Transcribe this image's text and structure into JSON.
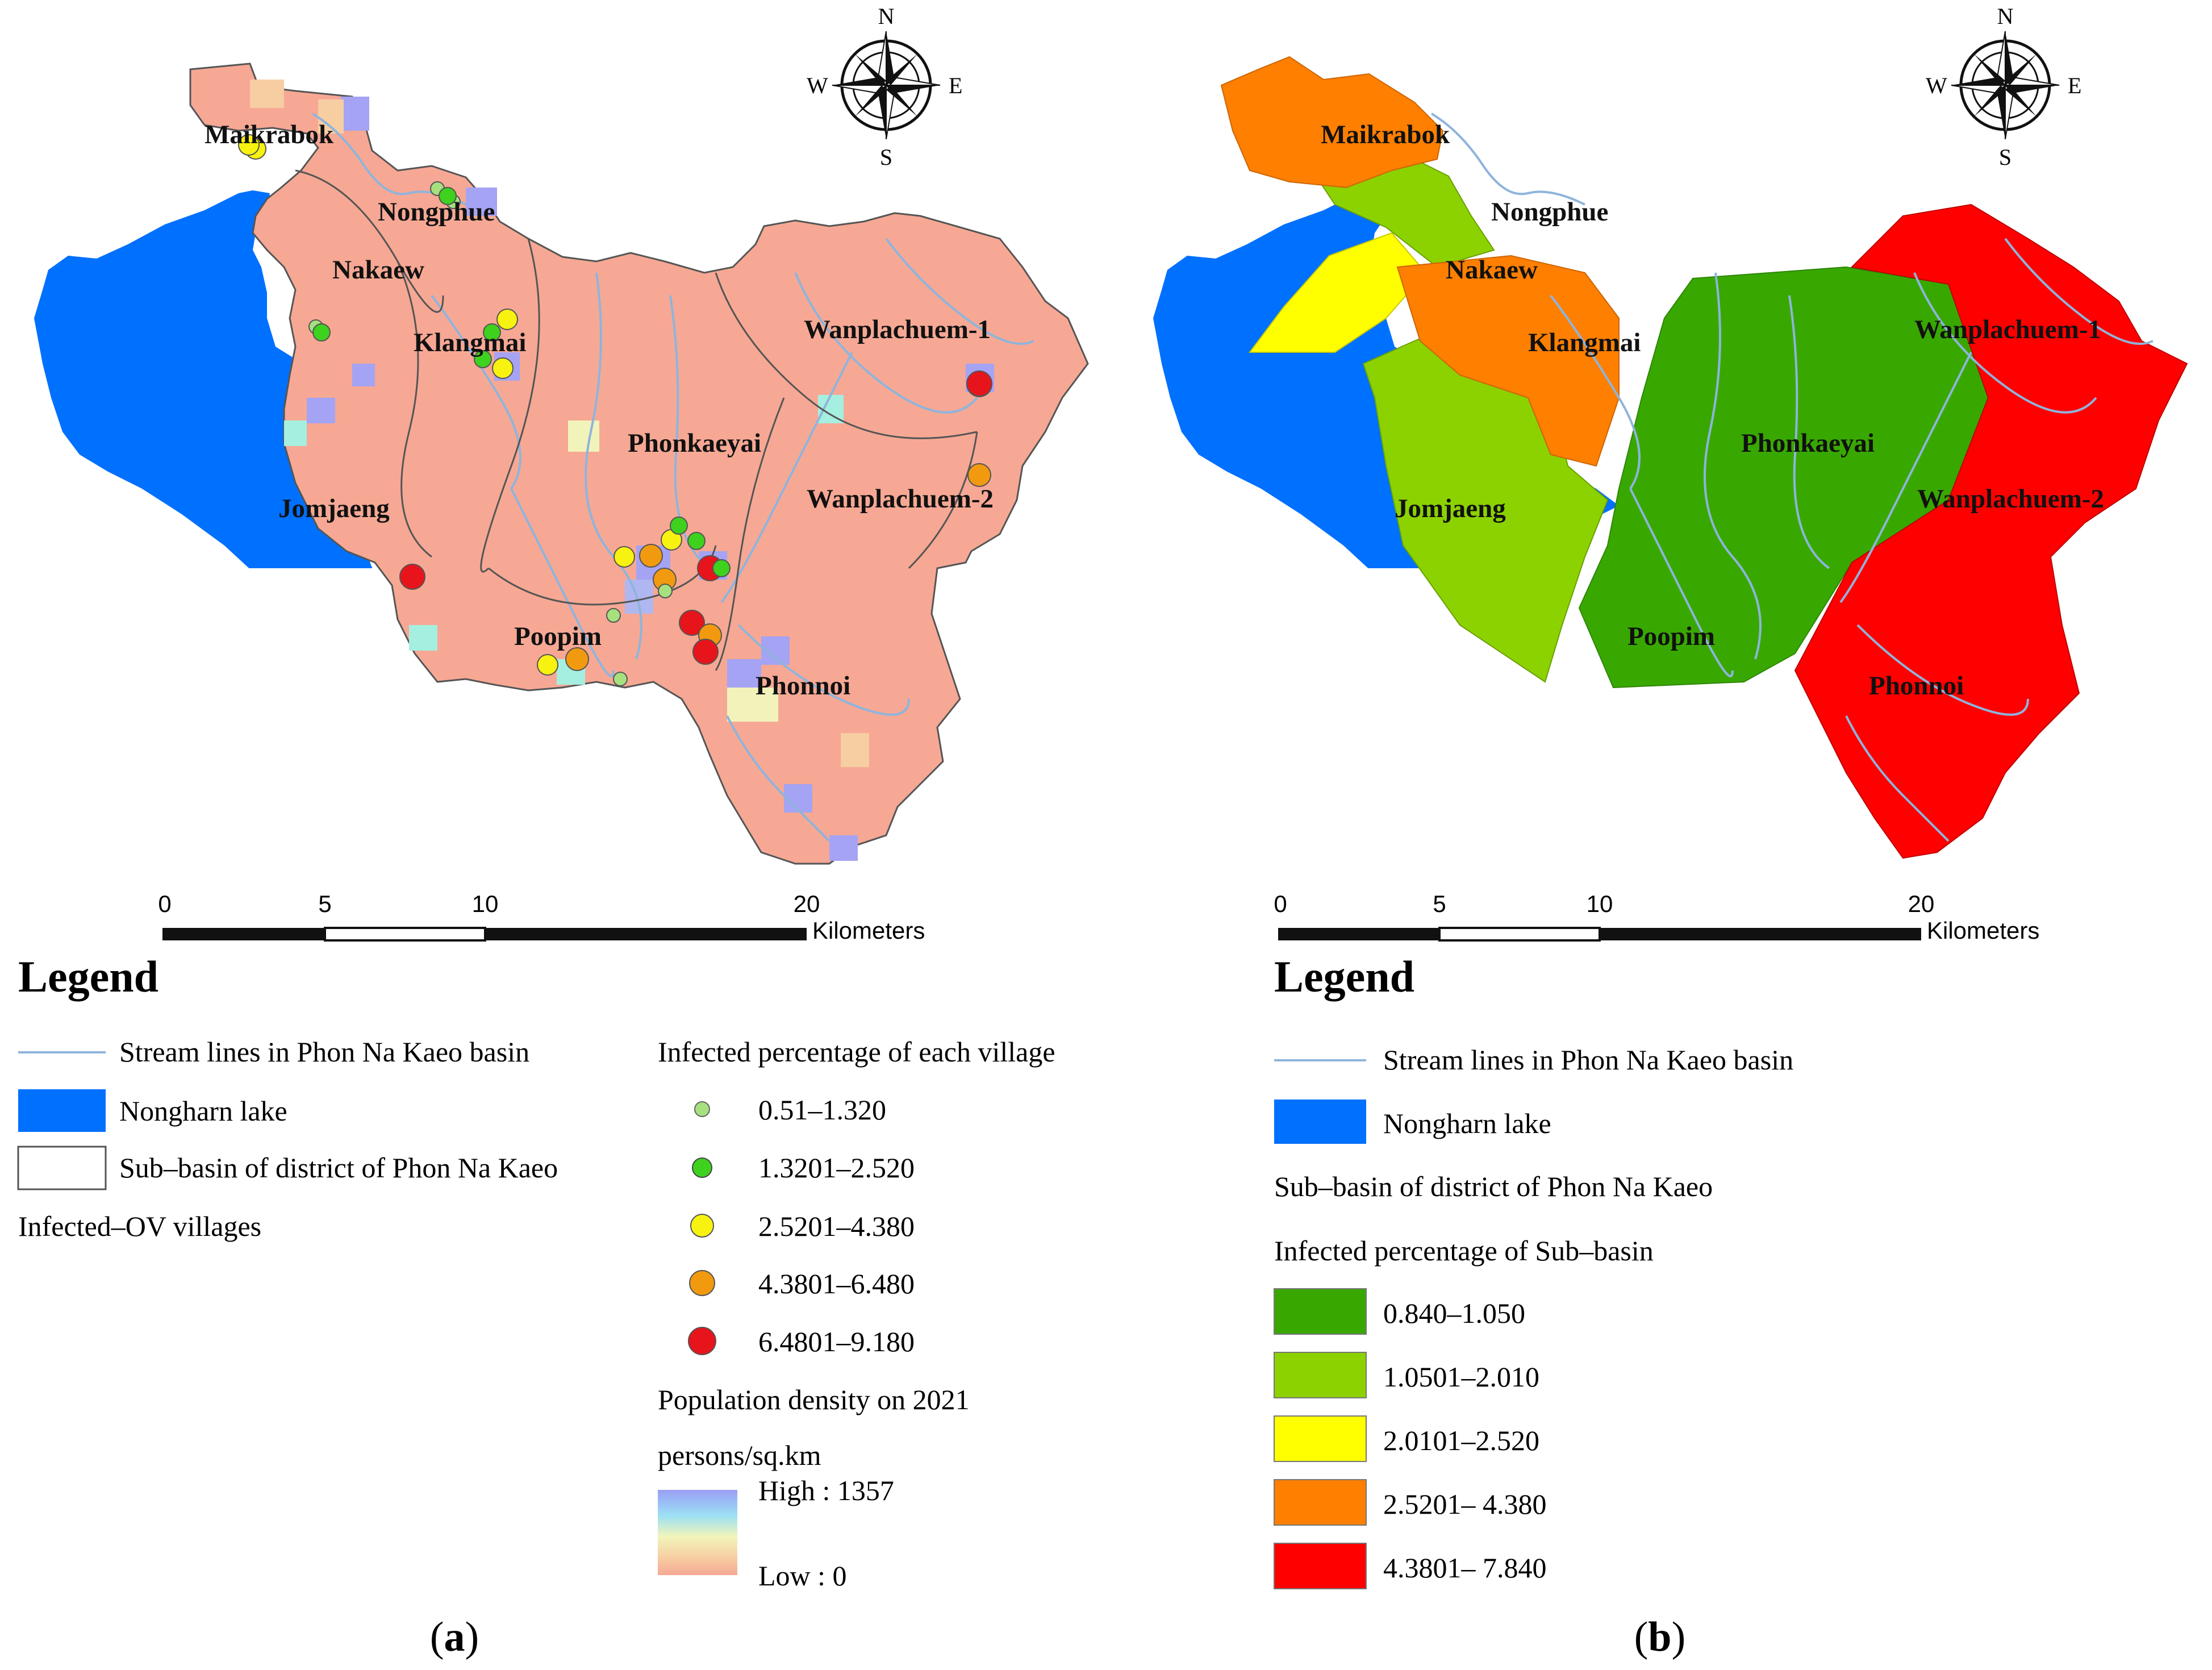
{
  "compass": {
    "n": "N",
    "s": "S",
    "e": "E",
    "w": "W"
  },
  "scale": {
    "ticks": [
      "0",
      "5",
      "10",
      "20"
    ],
    "unit": "Kilometers"
  },
  "districts": [
    "Maikrabok",
    "Nongphue",
    "Nakaew",
    "Klangmai",
    "Wanplachuem-1",
    "Phonkaeyai",
    "Wanplachuem-2",
    "Jomjaeng",
    "Poopim",
    "Phonnoi"
  ],
  "panel_a": {
    "caption": {
      "open": "(",
      "letter": "a",
      "close": ")"
    },
    "legend": {
      "title": "Legend",
      "stream": "Stream lines in Phon Na Kaeo basin",
      "lake": "Nongharn lake",
      "subbasin": "Sub–basin of district of Phon Na Kaeo",
      "villages": "Infected–OV villages",
      "infected_title": "Infected percentage of each village",
      "classes": [
        {
          "label": "0.51–1.320",
          "color": "#a6e07f"
        },
        {
          "label": "1.3201–2.520",
          "color": "#3ed11d"
        },
        {
          "label": "2.5201–4.380",
          "color": "#f7f20f"
        },
        {
          "label": "4.3801–6.480",
          "color": "#f29a0f"
        },
        {
          "label": "6.4801–9.180",
          "color": "#e8141c"
        }
      ],
      "density_title": "Population density on 2021",
      "density_unit": "persons/sq.km",
      "density_high": "High : 1357",
      "density_low": "Low : 0"
    }
  },
  "panel_b": {
    "caption": {
      "open": "(",
      "letter": "b",
      "close": ")"
    },
    "legend": {
      "title": "Legend",
      "stream": "Stream lines in Phon Na Kaeo basin",
      "lake": "Nongharn lake",
      "subbasin": "Sub–basin of district of Phon Na Kaeo",
      "infected_title": "Infected percentage of Sub–basin",
      "classes": [
        {
          "label": "0.840–1.050",
          "color": "#38a800"
        },
        {
          "label": "1.0501–2.010",
          "color": "#8cd200"
        },
        {
          "label": "2.0101–2.520",
          "color": "#ffff00"
        },
        {
          "label": "2.5201– 4.380",
          "color": "#ff7f00"
        },
        {
          "label": "4.3801– 7.840",
          "color": "#ff0000"
        }
      ]
    }
  },
  "colors": {
    "lake": "#0070ff",
    "stream": "#8fb4dc",
    "density_base": "#f6a894",
    "boundary": "#555555"
  }
}
